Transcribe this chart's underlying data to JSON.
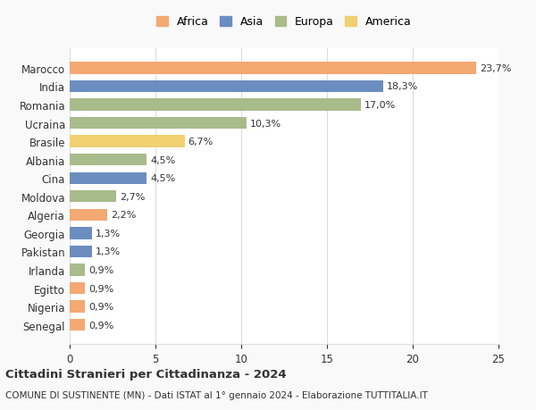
{
  "countries": [
    "Marocco",
    "India",
    "Romania",
    "Ucraina",
    "Brasile",
    "Albania",
    "Cina",
    "Moldova",
    "Algeria",
    "Georgia",
    "Pakistan",
    "Irlanda",
    "Egitto",
    "Nigeria",
    "Senegal"
  ],
  "values": [
    23.7,
    18.3,
    17.0,
    10.3,
    6.7,
    4.5,
    4.5,
    2.7,
    2.2,
    1.3,
    1.3,
    0.9,
    0.9,
    0.9,
    0.9
  ],
  "labels": [
    "23,7%",
    "18,3%",
    "17,0%",
    "10,3%",
    "6,7%",
    "4,5%",
    "4,5%",
    "2,7%",
    "2,2%",
    "1,3%",
    "1,3%",
    "0,9%",
    "0,9%",
    "0,9%",
    "0,9%"
  ],
  "continents": [
    "Africa",
    "Asia",
    "Europa",
    "Europa",
    "America",
    "Europa",
    "Asia",
    "Europa",
    "Africa",
    "Asia",
    "Asia",
    "Europa",
    "Africa",
    "Africa",
    "Africa"
  ],
  "colors": {
    "Africa": "#F4A872",
    "Asia": "#6B8DBF",
    "Europa": "#A8BB8A",
    "America": "#F0D070"
  },
  "legend_order": [
    "Africa",
    "Asia",
    "Europa",
    "America"
  ],
  "title": "Cittadini Stranieri per Cittadinanza - 2024",
  "subtitle": "COMUNE DI SUSTINENTE (MN) - Dati ISTAT al 1° gennaio 2024 - Elaborazione TUTTITALIA.IT",
  "xlim": [
    0,
    25
  ],
  "xticks": [
    0,
    5,
    10,
    15,
    20,
    25
  ],
  "background_color": "#f9f9f9",
  "bar_background": "#ffffff",
  "grid_color": "#dddddd",
  "text_color": "#333333"
}
